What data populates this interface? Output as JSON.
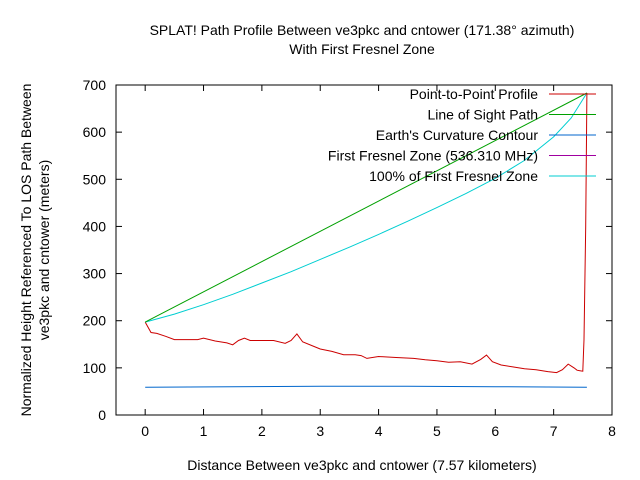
{
  "chart_data": {
    "type": "line",
    "title_line1": "SPLAT! Path Profile Between ve3pkc and cntower (171.38° azimuth)",
    "title_line2": "With First Fresnel Zone",
    "xlabel": "Distance Between ve3pkc and cntower (7.57 kilometers)",
    "ylabel_line1": "Normalized Height Referenced To LOS Path Between",
    "ylabel_line2": "ve3pkc and cntower (meters)",
    "xlim": [
      -0.5,
      8.0
    ],
    "ylim": [
      0,
      700
    ],
    "xticks": [
      0,
      1,
      2,
      3,
      4,
      5,
      6,
      7,
      8
    ],
    "yticks": [
      0,
      100,
      200,
      300,
      400,
      500,
      600,
      700
    ],
    "legend_position": "top-right",
    "series": [
      {
        "name": "Point-to-Point Profile",
        "color": "#cc0000",
        "x": [
          0,
          0.1,
          0.2,
          0.35,
          0.5,
          0.7,
          0.9,
          1.0,
          1.2,
          1.4,
          1.5,
          1.6,
          1.7,
          1.8,
          2.0,
          2.2,
          2.4,
          2.5,
          2.6,
          2.7,
          2.9,
          3.0,
          3.2,
          3.4,
          3.6,
          3.7,
          3.8,
          4.0,
          4.3,
          4.6,
          4.8,
          5.0,
          5.2,
          5.4,
          5.6,
          5.75,
          5.85,
          5.95,
          6.1,
          6.3,
          6.5,
          6.7,
          6.9,
          7.05,
          7.15,
          7.25,
          7.35,
          7.4,
          7.45,
          7.5,
          7.52,
          7.55,
          7.57
        ],
        "y": [
          197,
          175,
          173,
          167,
          160,
          160,
          160,
          163,
          157,
          153,
          149,
          158,
          163,
          158,
          158,
          158,
          152,
          158,
          172,
          155,
          145,
          140,
          135,
          128,
          128,
          126,
          120,
          124,
          122,
          120,
          117,
          115,
          112,
          113,
          108,
          118,
          127,
          113,
          106,
          102,
          98,
          96,
          92,
          90,
          96,
          108,
          100,
          95,
          94,
          93,
          160,
          400,
          683
        ]
      },
      {
        "name": "Line of Sight Path",
        "color": "#00a000",
        "x": [
          0,
          7.57
        ],
        "y": [
          197,
          683
        ]
      },
      {
        "name": "Earth's Curvature Contour",
        "color": "#0066cc",
        "x": [
          0,
          1.5,
          3.0,
          4.5,
          6.0,
          7.57
        ],
        "y": [
          59,
          60,
          61,
          61,
          60,
          59
        ]
      },
      {
        "name": "First Fresnel Zone (536.310 MHz)",
        "color": "#a000a0",
        "x": [],
        "y": []
      },
      {
        "name": "100% of First Fresnel Zone",
        "color": "#00ced1",
        "x": [
          0,
          0.5,
          1,
          1.5,
          2,
          2.5,
          3,
          3.5,
          4,
          4.5,
          5,
          5.5,
          6,
          6.5,
          7,
          7.3,
          7.57
        ],
        "y": [
          197,
          214,
          234,
          256,
          280,
          304,
          330,
          356,
          383,
          411,
          440,
          470,
          502,
          540,
          590,
          630,
          683
        ]
      }
    ]
  }
}
